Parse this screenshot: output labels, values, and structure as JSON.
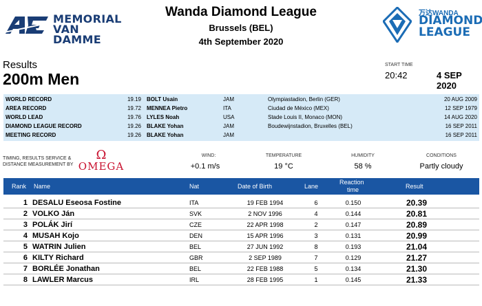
{
  "header": {
    "left_logo": {
      "line1": "MEMORIAL",
      "line2": "VAN DAMME"
    },
    "title": "Wanda Diamond League",
    "city": "Brussels (BEL)",
    "date": "4th September 2020",
    "right_logo": {
      "wanda": "万达WANDA",
      "line1": "DIAMOND",
      "line2": "LEAGUE"
    }
  },
  "event": {
    "results_label": "Results",
    "name": "200m Men",
    "start_time_label": "START TIME",
    "start_time": "20:42",
    "start_date": "4 SEP 2020"
  },
  "records": [
    {
      "type": "WORLD RECORD",
      "mark": "19.19",
      "athlete": "BOLT Usain",
      "nat": "JAM",
      "venue": "Olympiastadion, Berlin (GER)",
      "date": "20 AUG 2009"
    },
    {
      "type": "AREA RECORD",
      "mark": "19.72",
      "athlete": "MENNEA Pietro",
      "nat": "ITA",
      "venue": "Ciudad de México (MEX)",
      "date": "12 SEP 1979"
    },
    {
      "type": "WORLD LEAD",
      "mark": "19.76",
      "athlete": "LYLES Noah",
      "nat": "USA",
      "venue": "Stade Louis II, Monaco (MON)",
      "date": "14 AUG 2020"
    },
    {
      "type": "DIAMOND LEAGUE RECORD",
      "mark": "19.26",
      "athlete": "BLAKE Yohan",
      "nat": "JAM",
      "venue": "Boudewijnstadion, Bruxelles (BEL)",
      "date": "16 SEP 2011"
    },
    {
      "type": "MEETING RECORD",
      "mark": "19.26",
      "athlete": "BLAKE Yohan",
      "nat": "JAM",
      "venue": "",
      "date": "16 SEP 2011"
    }
  ],
  "timing": {
    "line1": "TIMING, RESULTS SERVICE &",
    "line2": "DISTANCE MEASUREMENT BY",
    "brand_symbol": "Ω",
    "brand": "OMEGA"
  },
  "conditions": {
    "wind_label": "WIND:",
    "wind": "+0.1 m/s",
    "temperature_label": "TEMPERATURE",
    "temperature": "19 °C",
    "humidity_label": "HUMIDITY",
    "humidity": "58 %",
    "conditions_label": "CONDITIONS",
    "conditions": "Partly cloudy"
  },
  "table": {
    "headers": {
      "rank": "Rank",
      "name": "Name",
      "nat": "Nat",
      "dob": "Date of Birth",
      "lane": "Lane",
      "reaction1": "Reaction",
      "reaction2": "time",
      "result": "Result"
    },
    "rows": [
      {
        "rank": "1",
        "name": "DESALU Eseosa Fostine",
        "nat": "ITA",
        "dob": "19 FEB 1994",
        "lane": "6",
        "reaction": "0.150",
        "result": "20.39"
      },
      {
        "rank": "2",
        "name": "VOLKO Ján",
        "nat": "SVK",
        "dob": "2 NOV 1996",
        "lane": "4",
        "reaction": "0.144",
        "result": "20.81"
      },
      {
        "rank": "3",
        "name": "POLÁK Jirí",
        "nat": "CZE",
        "dob": "22 APR 1998",
        "lane": "2",
        "reaction": "0.147",
        "result": "20.89"
      },
      {
        "rank": "4",
        "name": "MUSAH Kojo",
        "nat": "DEN",
        "dob": "15 APR 1996",
        "lane": "3",
        "reaction": "0.131",
        "result": "20.99"
      },
      {
        "rank": "5",
        "name": "WATRIN Julien",
        "nat": "BEL",
        "dob": "27 JUN 1992",
        "lane": "8",
        "reaction": "0.193",
        "result": "21.04"
      },
      {
        "rank": "6",
        "name": "KILTY Richard",
        "nat": "GBR",
        "dob": "2 SEP 1989",
        "lane": "7",
        "reaction": "0.129",
        "result": "21.27"
      },
      {
        "rank": "7",
        "name": "BORLÉE Jonathan",
        "nat": "BEL",
        "dob": "22 FEB 1988",
        "lane": "5",
        "reaction": "0.134",
        "result": "21.30"
      },
      {
        "rank": "8",
        "name": "LAWLER Marcus",
        "nat": "IRL",
        "dob": "28 FEB 1995",
        "lane": "1",
        "reaction": "0.145",
        "result": "21.33"
      }
    ]
  },
  "colors": {
    "navy": "#1a3d75",
    "blue_header": "#1a56a3",
    "record_band": "#d6eaf7",
    "omega_red": "#c8102e",
    "dl_blue": "#1b6cb5"
  }
}
